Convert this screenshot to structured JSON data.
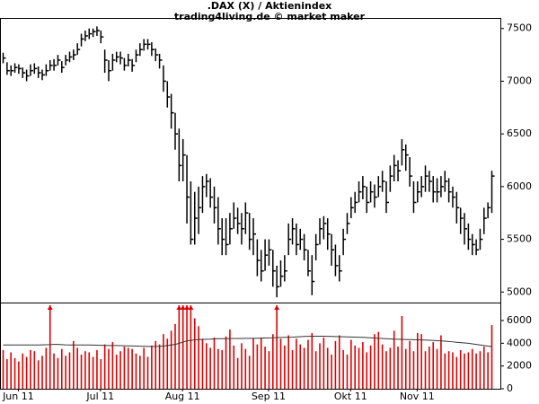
{
  "chart_data": [
    {
      "type": "hlc",
      "title": ".DAX (X) / Aktienindex",
      "subtitle": "trading4living.de © market maker",
      "color": "#000000",
      "high": [
        7270,
        7180,
        7150,
        7170,
        7160,
        7130,
        7110,
        7160,
        7170,
        7140,
        7110,
        7160,
        7200,
        7210,
        7250,
        7190,
        7250,
        7280,
        7300,
        7360,
        7450,
        7480,
        7500,
        7500,
        7520,
        7480,
        7300,
        7200,
        7260,
        7280,
        7280,
        7220,
        7260,
        7210,
        7300,
        7360,
        7400,
        7400,
        7370,
        7310,
        7260,
        7150,
        7000,
        6880,
        6700,
        6550,
        6450,
        6300,
        6050,
        5950,
        6000,
        6100,
        6120,
        6080,
        6000,
        5900,
        5700,
        5700,
        5750,
        5850,
        5800,
        5750,
        5850,
        5750,
        5700,
        5500,
        5400,
        5500,
        5500,
        5400,
        5250,
        5300,
        5350,
        5650,
        5700,
        5650,
        5600,
        5550,
        5400,
        5350,
        5550,
        5700,
        5720,
        5700,
        5550,
        5450,
        5350,
        5600,
        5750,
        5900,
        5950,
        6050,
        6100,
        6000,
        6050,
        6020,
        6100,
        6150,
        6050,
        6200,
        6300,
        6250,
        6450,
        6400,
        6280,
        6050,
        6050,
        6100,
        6200,
        6150,
        6100,
        6080,
        6100,
        6150,
        6080,
        6000,
        5950,
        5800,
        5750,
        5650,
        5550,
        5500,
        5600,
        5800,
        5850,
        6150
      ],
      "low": [
        7170,
        7060,
        7050,
        7080,
        7070,
        7030,
        7000,
        7050,
        7070,
        7030,
        7010,
        7050,
        7100,
        7100,
        7150,
        7080,
        7150,
        7180,
        7200,
        7250,
        7330,
        7380,
        7400,
        7420,
        7430,
        7360,
        7080,
        7000,
        7100,
        7180,
        7160,
        7100,
        7140,
        7090,
        7180,
        7240,
        7290,
        7300,
        7240,
        7190,
        7120,
        6900,
        6750,
        6550,
        6350,
        6050,
        6050,
        5650,
        5450,
        5450,
        5550,
        5750,
        5900,
        5800,
        5650,
        5450,
        5350,
        5350,
        5450,
        5600,
        5550,
        5450,
        5550,
        5400,
        5350,
        5150,
        5100,
        5200,
        5250,
        5050,
        4950,
        5050,
        5100,
        5350,
        5450,
        5350,
        5400,
        5300,
        5150,
        4970,
        5300,
        5450,
        5500,
        5400,
        5250,
        5150,
        5100,
        5350,
        5550,
        5700,
        5750,
        5850,
        5880,
        5750,
        5850,
        5800,
        5900,
        5950,
        5750,
        5950,
        6050,
        6050,
        6200,
        6150,
        6000,
        5750,
        5850,
        5900,
        5950,
        5950,
        5850,
        5850,
        5900,
        5950,
        5850,
        5800,
        5650,
        5550,
        5450,
        5400,
        5350,
        5350,
        5400,
        5550,
        5700,
        5750
      ],
      "close": [
        7220,
        7100,
        7100,
        7130,
        7120,
        7080,
        7050,
        7100,
        7120,
        7080,
        7060,
        7100,
        7150,
        7150,
        7200,
        7130,
        7200,
        7230,
        7250,
        7300,
        7400,
        7430,
        7450,
        7470,
        7480,
        7420,
        7200,
        7100,
        7200,
        7230,
        7220,
        7150,
        7200,
        7150,
        7250,
        7300,
        7350,
        7350,
        7300,
        7250,
        7200,
        7000,
        6850,
        6700,
        6500,
        6200,
        6300,
        5900,
        5500,
        5700,
        5800,
        6000,
        6050,
        5900,
        5800,
        5600,
        5500,
        5450,
        5600,
        5700,
        5650,
        5600,
        5750,
        5500,
        5550,
        5300,
        5200,
        5350,
        5400,
        5200,
        5050,
        5150,
        5200,
        5500,
        5600,
        5450,
        5500,
        5400,
        5200,
        5100,
        5450,
        5600,
        5650,
        5550,
        5400,
        5250,
        5200,
        5500,
        5650,
        5800,
        5850,
        5950,
        6000,
        5850,
        5950,
        5900,
        6000,
        6050,
        5850,
        6100,
        6200,
        6150,
        6350,
        6300,
        6100,
        5850,
        5950,
        6000,
        6100,
        6050,
        5950,
        5950,
        6000,
        6050,
        5950,
        5900,
        5800,
        5700,
        5600,
        5500,
        5450,
        5400,
        5500,
        5700,
        5800,
        6100
      ],
      "ylim": [
        4900,
        7600
      ],
      "yticks": [
        5000,
        5500,
        6000,
        6500,
        7000,
        7500
      ]
    },
    {
      "type": "bar",
      "color": "#e00000",
      "average_color": "#333333",
      "categories": [
        null,
        null,
        null,
        null,
        "Jun 11",
        null,
        null,
        null,
        null,
        null,
        null,
        null,
        null,
        null,
        null,
        null,
        null,
        null,
        null,
        null,
        null,
        null,
        null,
        null,
        null,
        "Jul 11",
        null,
        null,
        null,
        null,
        null,
        null,
        null,
        null,
        null,
        null,
        null,
        null,
        null,
        null,
        null,
        null,
        null,
        null,
        null,
        null,
        "Aug 11",
        null,
        null,
        null,
        null,
        null,
        null,
        null,
        null,
        null,
        null,
        null,
        null,
        null,
        null,
        null,
        null,
        null,
        null,
        null,
        null,
        null,
        "Sep 11",
        null,
        null,
        null,
        null,
        null,
        null,
        null,
        null,
        null,
        null,
        null,
        null,
        null,
        null,
        null,
        null,
        null,
        null,
        null,
        null,
        "Okt 11",
        null,
        null,
        null,
        null,
        null,
        null,
        null,
        null,
        null,
        null,
        null,
        null,
        null,
        null,
        null,
        null,
        "Nov 11",
        null,
        null,
        null,
        null,
        null,
        null,
        null,
        null,
        null,
        null,
        null,
        null,
        null,
        null,
        null,
        null,
        null,
        null,
        null
      ],
      "values": [
        3400,
        2600,
        3200,
        2700,
        2400,
        3100,
        2800,
        3400,
        3300,
        2500,
        2900,
        3600,
        8000,
        3100,
        2700,
        3500,
        2900,
        3200,
        4200,
        3600,
        3000,
        3300,
        3200,
        2800,
        3400,
        2600,
        3900,
        3500,
        4100,
        3000,
        3300,
        3700,
        3600,
        3500,
        3100,
        2900,
        3600,
        2800,
        3800,
        4200,
        3900,
        4800,
        4400,
        5100,
        5700,
        8000,
        8000,
        8000,
        8000,
        6200,
        5500,
        4400,
        4000,
        3600,
        4500,
        3500,
        3400,
        4600,
        5200,
        3800,
        2700,
        4000,
        3500,
        2900,
        4400,
        3900,
        4500,
        3700,
        3300,
        4800,
        8000,
        4400,
        3800,
        4700,
        3400,
        4400,
        3900,
        3600,
        4300,
        4900,
        3300,
        4000,
        4500,
        3600,
        3000,
        4200,
        4700,
        3400,
        3000,
        4300,
        3800,
        3600,
        4100,
        3200,
        3800,
        4800,
        5000,
        3900,
        3300,
        3600,
        5100,
        3700,
        6400,
        3500,
        4200,
        3300,
        4900,
        4800,
        3300,
        3700,
        4100,
        3500,
        4700,
        3100,
        3300,
        3200,
        2800,
        3400,
        3100,
        3200,
        3500,
        3100,
        3300,
        3700,
        3200,
        5600
      ],
      "average": [
        3850,
        3850,
        3850,
        3850,
        3850,
        3850,
        3850,
        3850,
        3850,
        3850,
        3860,
        3870,
        3880,
        3900,
        3900,
        3880,
        3860,
        3850,
        3850,
        3850,
        3850,
        3850,
        3850,
        3840,
        3830,
        3820,
        3810,
        3800,
        3800,
        3800,
        3790,
        3780,
        3770,
        3760,
        3750,
        3740,
        3730,
        3720,
        3720,
        3720,
        3730,
        3750,
        3800,
        3850,
        3900,
        4000,
        4100,
        4200,
        4250,
        4300,
        4320,
        4340,
        4350,
        4360,
        4380,
        4400,
        4400,
        4400,
        4410,
        4420,
        4420,
        4420,
        4430,
        4430,
        4430,
        4440,
        4450,
        4460,
        4470,
        4480,
        4500,
        4510,
        4520,
        4530,
        4540,
        4560,
        4580,
        4600,
        4610,
        4620,
        4620,
        4620,
        4620,
        4610,
        4600,
        4590,
        4580,
        4570,
        4560,
        4550,
        4540,
        4530,
        4520,
        4500,
        4480,
        4460,
        4440,
        4420,
        4400,
        4380,
        4360,
        4350,
        4340,
        4330,
        4320,
        4310,
        4300,
        4290,
        4280,
        4260,
        4240,
        4220,
        4200,
        4180,
        4150,
        4120,
        4090,
        4060,
        4030,
        4000,
        3950,
        3900,
        3850,
        3800,
        3750,
        3700
      ],
      "ylim": [
        0,
        7500
      ],
      "yticks": [
        0,
        2000,
        4000,
        6000
      ]
    }
  ]
}
